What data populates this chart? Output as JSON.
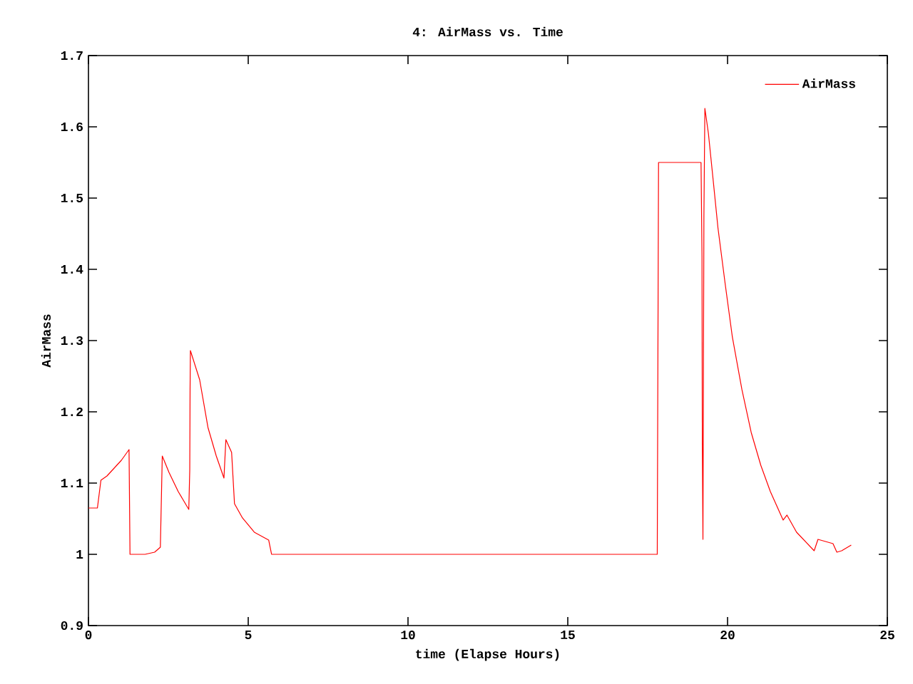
{
  "chart_data": {
    "type": "line",
    "title": "4: AirMass vs. Time",
    "xlabel": "time (Elapse Hours)",
    "ylabel": "AirMass",
    "xlim": [
      0,
      25
    ],
    "ylim": [
      0.9,
      1.7
    ],
    "xticks": [
      0,
      5,
      10,
      15,
      20,
      25
    ],
    "yticks": [
      {
        "value": 0.9,
        "label": "0.9"
      },
      1,
      {
        "value": 1.1,
        "label": "1.1"
      },
      {
        "value": 1.2,
        "label": "1.2"
      },
      {
        "value": 1.3,
        "label": "1.3"
      },
      {
        "value": 1.4,
        "label": "1.4"
      },
      {
        "value": 1.5,
        "label": "1.5"
      },
      {
        "value": 1.6,
        "label": "1.6"
      },
      {
        "value": 1.7,
        "label": "1.7"
      }
    ],
    "legend": "top right",
    "grid": false,
    "marker": "none",
    "line_style": "solid",
    "series": [
      {
        "name": "AirMass",
        "color": "#ff0000",
        "x": [
          0,
          0.28,
          0.39,
          0.58,
          1.03,
          1.27,
          1.3,
          1.77,
          2.07,
          2.25,
          2.31,
          2.52,
          2.81,
          3.14,
          3.17,
          3.18,
          3.19,
          3.48,
          3.74,
          4.0,
          4.24,
          4.3,
          4.48,
          4.57,
          4.82,
          5.19,
          5.64,
          5.73,
          17.8,
          17.81,
          17.83,
          17.84,
          19.17,
          19.2,
          19.21,
          19.23,
          19.26,
          19.29,
          19.4,
          19.55,
          19.7,
          19.93,
          20.15,
          20.45,
          20.74,
          21.04,
          21.34,
          21.74,
          21.86,
          22.16,
          22.71,
          22.83,
          23.3,
          23.42,
          23.57,
          23.87
        ],
        "values": [
          1.065,
          1.065,
          1.104,
          1.11,
          1.132,
          1.147,
          1.0,
          1.0,
          1.003,
          1.01,
          1.138,
          1.115,
          1.088,
          1.063,
          1.118,
          1.231,
          1.286,
          1.245,
          1.178,
          1.138,
          1.107,
          1.161,
          1.143,
          1.071,
          1.051,
          1.031,
          1.02,
          1.0,
          1.0,
          1.136,
          1.411,
          1.55,
          1.55,
          1.418,
          1.155,
          1.021,
          1.475,
          1.626,
          1.591,
          1.525,
          1.458,
          1.378,
          1.305,
          1.231,
          1.171,
          1.125,
          1.088,
          1.048,
          1.055,
          1.031,
          1.005,
          1.021,
          1.015,
          1.003,
          1.005,
          1.013
        ]
      }
    ]
  }
}
